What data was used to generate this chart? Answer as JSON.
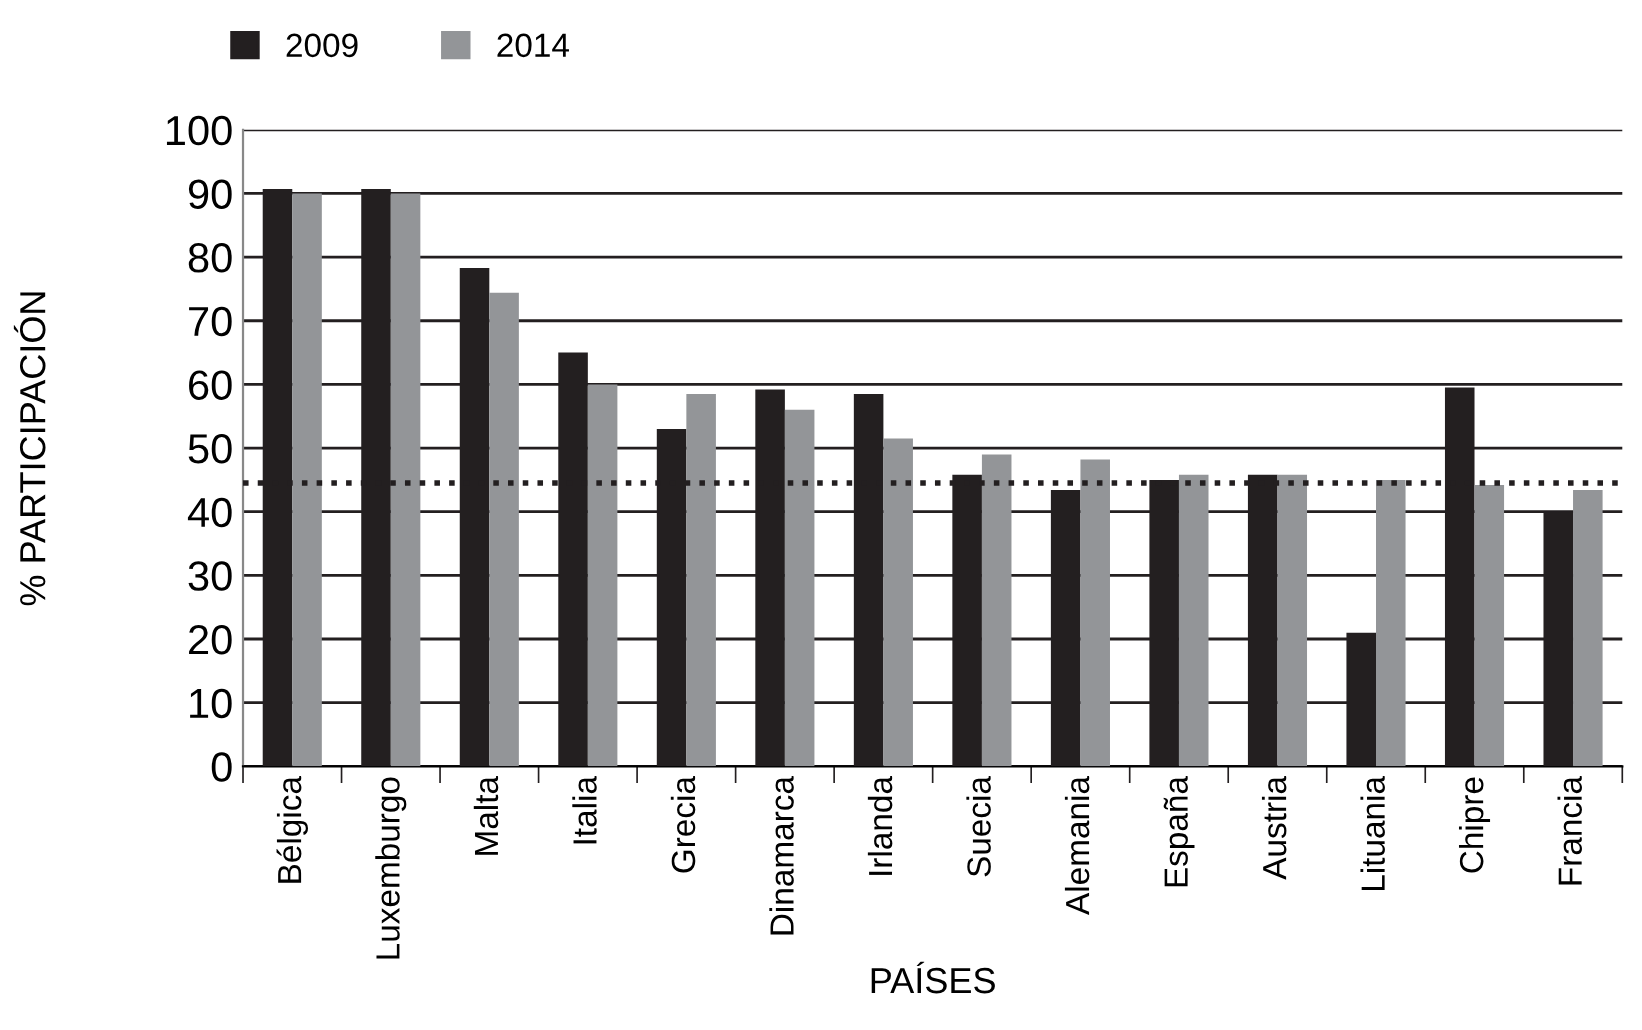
{
  "chart_data": {
    "type": "bar",
    "xlabel": "PAÍSES",
    "ylabel": "% PARTICIPACIÓN",
    "categories": [
      "Bélgica",
      "Luxemburgo",
      "Malta",
      "Italia",
      "Grecia",
      "Dinamarca",
      "Irlanda",
      "Suecia",
      "Alemania",
      "España",
      "Austria",
      "Lituania",
      "Chipre",
      "Francia"
    ],
    "series": [
      {
        "name": "2009",
        "color": "#231f20",
        "values": [
          90.7,
          90.7,
          78.3,
          65,
          53,
          59.2,
          58.5,
          45.8,
          43.4,
          45,
          45.8,
          21,
          59.5,
          40
        ]
      },
      {
        "name": "2014",
        "color": "#939598",
        "values": [
          90,
          90,
          74.4,
          60,
          58.5,
          56,
          51.5,
          49,
          48.2,
          45.8,
          45.8,
          45,
          44.2,
          43.4
        ]
      }
    ],
    "ylim": [
      0,
      100
    ],
    "yticks": [
      0,
      10,
      20,
      30,
      40,
      50,
      60,
      70,
      80,
      90,
      100
    ],
    "grid": "y",
    "legend": "top left",
    "ref_lines": [
      {
        "axis": "y",
        "value": 44.5,
        "color": "#231f20",
        "line_style": "dotted"
      }
    ]
  }
}
